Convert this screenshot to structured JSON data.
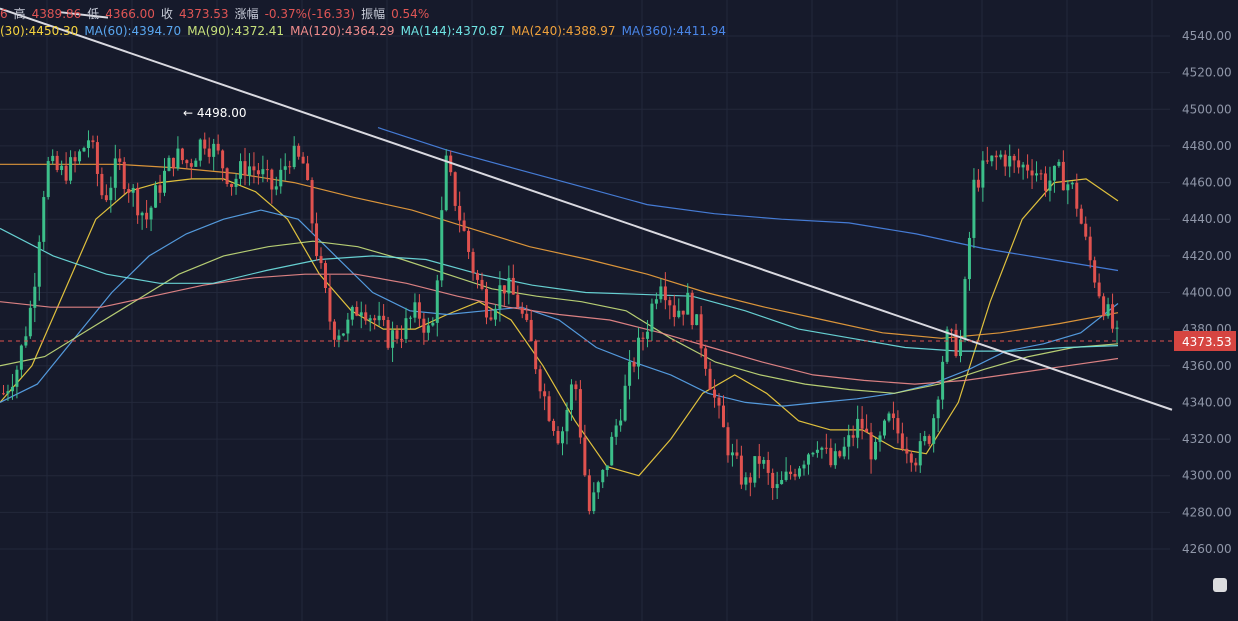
{
  "header": {
    "row1": [
      {
        "text": "6",
        "color": "#e05555"
      },
      {
        "text": "高",
        "color": "#c8ccd8"
      },
      {
        "text": "4389.86",
        "color": "#e05555"
      },
      {
        "text": "低",
        "color": "#c8ccd8"
      },
      {
        "text": "4366.00",
        "color": "#e05555"
      },
      {
        "text": "收",
        "color": "#c8ccd8"
      },
      {
        "text": "4373.53",
        "color": "#e05555"
      },
      {
        "text": "涨幅",
        "color": "#c8ccd8"
      },
      {
        "text": "-0.37%(-16.33)",
        "color": "#e05555"
      },
      {
        "text": "振幅",
        "color": "#c8ccd8"
      },
      {
        "text": "0.54%",
        "color": "#e05555"
      }
    ],
    "ma_labels": [
      {
        "text": "(30):4450.30",
        "color": "#f5d33f"
      },
      {
        "text": "MA(60):4394.70",
        "color": "#5aa7f0"
      },
      {
        "text": "MA(90):4372.41",
        "color": "#c6e07b"
      },
      {
        "text": "MA(120):4364.29",
        "color": "#f08c8c"
      },
      {
        "text": "MA(144):4370.87",
        "color": "#6fe3e3"
      },
      {
        "text": "MA(240):4388.97",
        "color": "#f0a23c"
      },
      {
        "text": "MA(360):4411.94",
        "color": "#4a86e8"
      }
    ]
  },
  "chart_data": {
    "type": "candlestick",
    "ylim": [
      4240,
      4550
    ],
    "y_ticks": [
      4540.0,
      4520.0,
      4500.0,
      4480.0,
      4460.0,
      4440.0,
      4420.0,
      4400.0,
      4380.0,
      4360.0,
      4340.0,
      4320.0,
      4300.0,
      4280.0,
      4260.0
    ],
    "last_price": "4373.53",
    "high_annotation": "← 4498.00",
    "candles_close_path": [
      4345,
      4360,
      4395,
      4470,
      4465,
      4470,
      4485,
      4450,
      4470,
      4455,
      4440,
      4460,
      4475,
      4470,
      4485,
      4475,
      4460,
      4470,
      4465,
      4455,
      4475,
      4470,
      4420,
      4380,
      4380,
      4395,
      4385,
      4375,
      4380,
      4390,
      4375,
      4470,
      4440,
      4410,
      4390,
      4405,
      4395,
      4370,
      4340,
      4320,
      4355,
      4280,
      4300,
      4330,
      4360,
      4380,
      4410,
      4390,
      4395,
      4370,
      4335,
      4310,
      4295,
      4310,
      4290,
      4300,
      4310,
      4320,
      4305,
      4315,
      4330,
      4310,
      4330,
      4320,
      4310,
      4325,
      4375,
      4370,
      4460,
      4470,
      4475,
      4468,
      4470,
      4460,
      4465,
      4455,
      4420,
      4395,
      4374
    ],
    "moving_averages": [
      {
        "name": "MA(30)",
        "color": "#f5d33f",
        "values": [
          4340,
          4360,
          4400,
          4440,
          4455,
          4460,
          4462,
          4462,
          4455,
          4440,
          4410,
          4390,
          4380,
          4380,
          4388,
          4395,
          4385,
          4360,
          4330,
          4305,
          4300,
          4320,
          4345,
          4355,
          4345,
          4330,
          4325,
          4325,
          4315,
          4312,
          4340,
          4395,
          4440,
          4460,
          4462,
          4450
        ]
      },
      {
        "name": "MA(60)",
        "color": "#5aa7f0",
        "values": [
          4340,
          4350,
          4375,
          4400,
          4420,
          4432,
          4440,
          4445,
          4440,
          4420,
          4400,
          4390,
          4388,
          4390,
          4392,
          4385,
          4370,
          4362,
          4355,
          4345,
          4340,
          4338,
          4340,
          4342,
          4345,
          4350,
          4358,
          4368,
          4372,
          4378,
          4394
        ]
      },
      {
        "name": "MA(90)",
        "color": "#c6e07b",
        "values": [
          4360,
          4365,
          4380,
          4395,
          4410,
          4420,
          4425,
          4428,
          4425,
          4418,
          4410,
          4402,
          4398,
          4395,
          4390,
          4375,
          4362,
          4355,
          4350,
          4347,
          4345,
          4350,
          4358,
          4365,
          4370,
          4372
        ]
      },
      {
        "name": "MA(120)",
        "color": "#f08c8c",
        "values": [
          4395,
          4392,
          4392,
          4398,
          4404,
          4408,
          4410,
          4410,
          4405,
          4398,
          4392,
          4388,
          4385,
          4378,
          4370,
          4362,
          4355,
          4352,
          4350,
          4352,
          4356,
          4360,
          4364
        ]
      },
      {
        "name": "MA(144)",
        "color": "#6fe3e3",
        "values": [
          4435,
          4420,
          4410,
          4405,
          4405,
          4412,
          4418,
          4420,
          4418,
          4410,
          4404,
          4400,
          4399,
          4398,
          4390,
          4380,
          4375,
          4370,
          4368,
          4368,
          4370,
          4371
        ]
      },
      {
        "name": "MA(240)",
        "color": "#f0a23c",
        "values": [
          4470,
          4470,
          4470,
          4468,
          4465,
          4460,
          4452,
          4445,
          4435,
          4425,
          4418,
          4410,
          4400,
          4392,
          4385,
          4378,
          4375,
          4378,
          4383,
          4389
        ]
      },
      {
        "name": "MA(360)",
        "color": "#4a86e8",
        "values": [
          4490,
          4478,
          4468,
          4458,
          4448,
          4443,
          4440,
          4438,
          4432,
          4424,
          4418,
          4412
        ]
      }
    ],
    "trendline": {
      "from": [
        0,
        4555
      ],
      "to": [
        1,
        4336
      ]
    }
  }
}
